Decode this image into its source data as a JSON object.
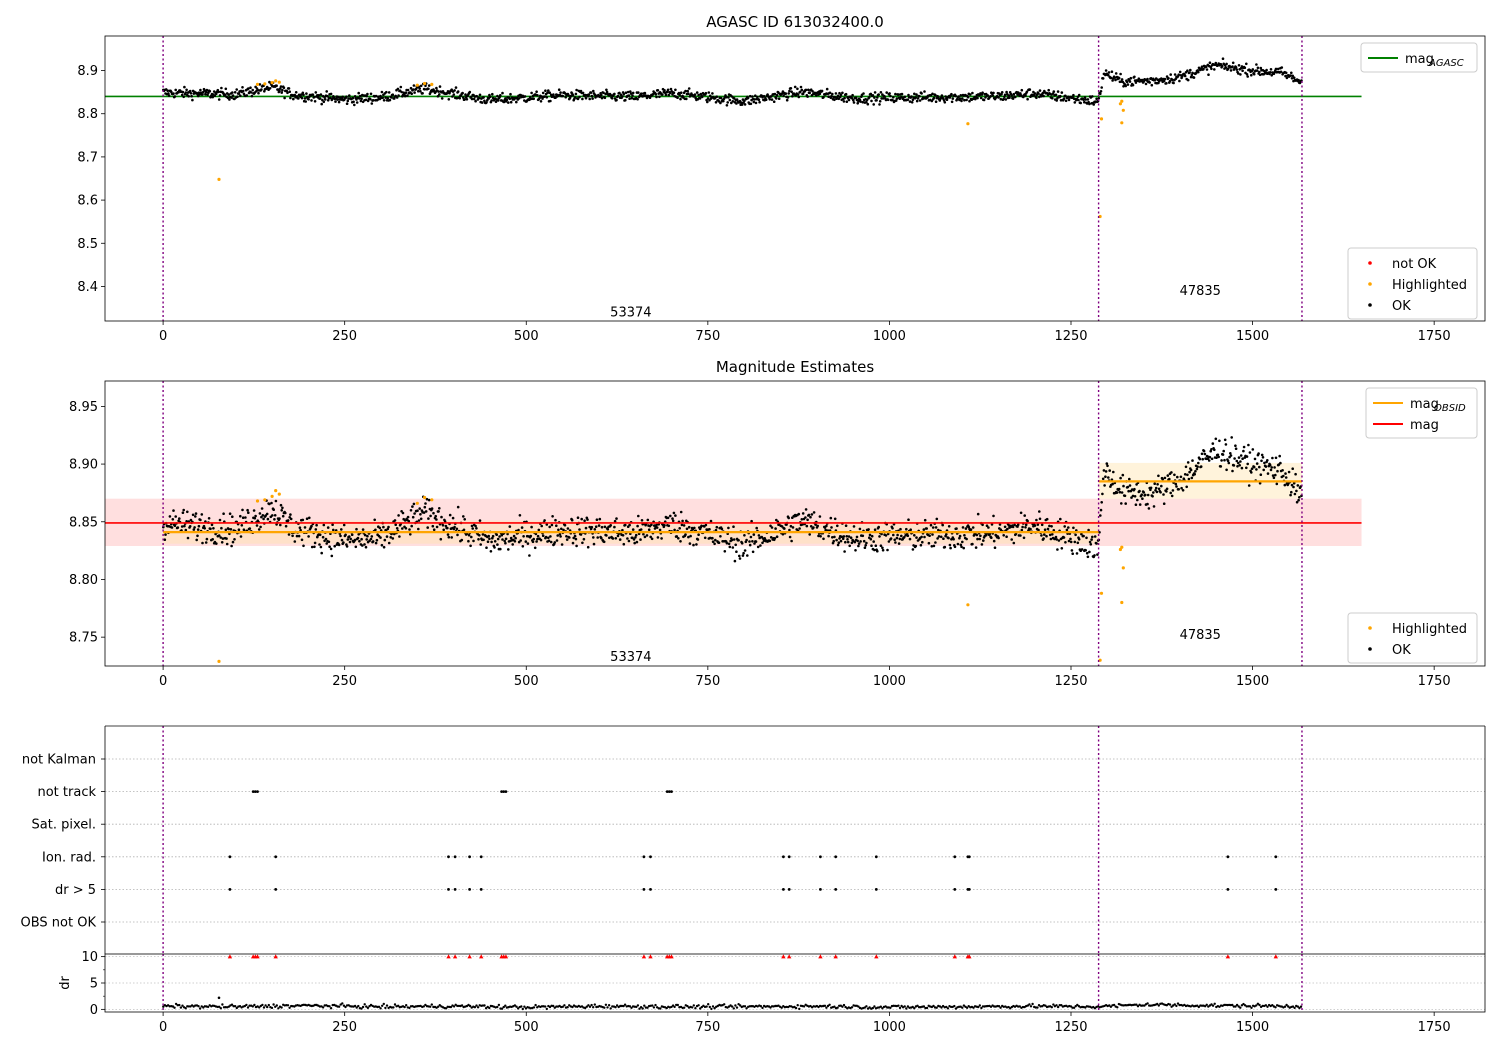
{
  "chart_data": [
    {
      "type": "scatter",
      "title": "AGASC ID 613032400.0",
      "xlim": [
        -80,
        1820
      ],
      "ylim": [
        8.32,
        8.98
      ],
      "xticks": [
        "0",
        "250",
        "500",
        "750",
        "1000",
        "1250",
        "1500",
        "1750"
      ],
      "yticks": [
        "8.4",
        "8.5",
        "8.6",
        "8.7",
        "8.8",
        "8.9"
      ],
      "ytick_values": [
        8.4,
        8.5,
        8.6,
        8.7,
        8.8,
        8.9
      ],
      "legend_upper": {
        "position": "upper-right",
        "entries": [
          {
            "label": "mag",
            "sub": "AGASC",
            "color": "#008000",
            "kind": "line"
          }
        ]
      },
      "legend_lower": {
        "position": "lower-right",
        "entries": [
          {
            "label": "not OK",
            "color": "#ff0000",
            "kind": "dot"
          },
          {
            "label": "Highlighted",
            "color": "#ffa500",
            "kind": "dot"
          },
          {
            "label": "OK",
            "color": "#000000",
            "kind": "dot"
          }
        ]
      },
      "obs_lines": [
        0,
        1288,
        1568
      ],
      "obs_annotations": [
        {
          "text": "53374",
          "x": 644,
          "y": 8.34
        },
        {
          "text": "47835",
          "x": 1428,
          "y": 8.39
        }
      ],
      "reference_line": {
        "name": "mag_AGASC",
        "y": 8.84,
        "x": [
          -80,
          1650
        ],
        "color": "#008000"
      },
      "series": [
        {
          "name": "OK",
          "color": "#000000",
          "segments": [
            {
              "x0": 0,
              "x1": 1288,
              "points": [
                [
                  0,
                  8.849
                ],
                [
                  100,
                  8.845
                ],
                [
                  150,
                  8.862
                ],
                [
                  180,
                  8.844
                ],
                [
                  250,
                  8.833
                ],
                [
                  300,
                  8.838
                ],
                [
                  360,
                  8.858
                ],
                [
                  400,
                  8.846
                ],
                [
                  450,
                  8.832
                ],
                [
                  550,
                  8.843
                ],
                [
                  650,
                  8.839
                ],
                [
                  700,
                  8.848
                ],
                [
                  800,
                  8.829
                ],
                [
                  880,
                  8.851
                ],
                [
                  950,
                  8.836
                ],
                [
                  1050,
                  8.838
                ],
                [
                  1150,
                  8.84
                ],
                [
                  1200,
                  8.847
                ],
                [
                  1288,
                  8.828
                ]
              ]
            },
            {
              "x0": 1288,
              "x1": 1568,
              "points": [
                [
                  1288,
                  8.826
                ],
                [
                  1295,
                  8.895
                ],
                [
                  1320,
                  8.875
                ],
                [
                  1360,
                  8.876
                ],
                [
                  1400,
                  8.885
                ],
                [
                  1450,
                  8.912
                ],
                [
                  1500,
                  8.9
                ],
                [
                  1540,
                  8.895
                ],
                [
                  1568,
                  8.873
                ]
              ]
            }
          ]
        },
        {
          "name": "Highlighted",
          "color": "#ffa500",
          "points": [
            [
              77,
              8.648
            ],
            [
              130,
              8.868
            ],
            [
              140,
              8.869
            ],
            [
              150,
              8.872
            ],
            [
              155,
              8.876
            ],
            [
              160,
              8.873
            ],
            [
              350,
              8.866
            ],
            [
              360,
              8.87
            ],
            [
              370,
              8.868
            ],
            [
              1108,
              8.777
            ],
            [
              1290,
              8.562
            ],
            [
              1292,
              8.788
            ],
            [
              1318,
              8.823
            ],
            [
              1320,
              8.829
            ],
            [
              1322,
              8.808
            ],
            [
              1320,
              8.779
            ]
          ]
        }
      ]
    },
    {
      "type": "scatter",
      "title": "Magnitude Estimates",
      "xlim": [
        -80,
        1820
      ],
      "ylim": [
        8.725,
        8.972
      ],
      "xticks": [
        "0",
        "250",
        "500",
        "750",
        "1000",
        "1250",
        "1500",
        "1750"
      ],
      "yticks": [
        "8.75",
        "8.80",
        "8.85",
        "8.90",
        "8.95"
      ],
      "ytick_values": [
        8.75,
        8.8,
        8.85,
        8.9,
        8.95
      ],
      "legend_upper": {
        "position": "upper-right",
        "entries": [
          {
            "label": "mag",
            "sub": "OBSID",
            "color": "#ffa500",
            "kind": "line"
          },
          {
            "label": "mag",
            "sub": "",
            "color": "#ff0000",
            "kind": "line"
          }
        ]
      },
      "legend_lower": {
        "position": "lower-right",
        "entries": [
          {
            "label": "Highlighted",
            "color": "#ffa500",
            "kind": "dot"
          },
          {
            "label": "OK",
            "color": "#000000",
            "kind": "dot"
          }
        ]
      },
      "obs_lines": [
        0,
        1288,
        1568
      ],
      "obs_annotations": [
        {
          "text": "53374",
          "x": 644,
          "y": 8.733
        },
        {
          "text": "47835",
          "x": 1428,
          "y": 8.752
        }
      ],
      "mag_line": {
        "y": 8.849,
        "band": [
          8.829,
          8.87
        ],
        "x": [
          -80,
          1650
        ],
        "color": "#ff0000",
        "band_color": "#ffdcdc"
      },
      "obsid_mags": [
        {
          "x0": 0,
          "x1": 1288,
          "y": 8.841,
          "band": [
            8.831,
            8.851
          ]
        },
        {
          "x0": 1288,
          "x1": 1568,
          "y": 8.885,
          "band": [
            8.87,
            8.901
          ]
        }
      ],
      "series": [
        {
          "name": "OK",
          "color": "#000000",
          "segments": [
            {
              "x0": 0,
              "x1": 1288,
              "points": [
                [
                  0,
                  8.849
                ],
                [
                  100,
                  8.843
                ],
                [
                  150,
                  8.862
                ],
                [
                  180,
                  8.844
                ],
                [
                  250,
                  8.834
                ],
                [
                  300,
                  8.836
                ],
                [
                  360,
                  8.858
                ],
                [
                  400,
                  8.846
                ],
                [
                  450,
                  8.833
                ],
                [
                  550,
                  8.843
                ],
                [
                  650,
                  8.84
                ],
                [
                  700,
                  8.848
                ],
                [
                  800,
                  8.83
                ],
                [
                  880,
                  8.851
                ],
                [
                  950,
                  8.836
                ],
                [
                  1050,
                  8.838
                ],
                [
                  1150,
                  8.84
                ],
                [
                  1200,
                  8.847
                ],
                [
                  1288,
                  8.828
                ]
              ]
            },
            {
              "x0": 1288,
              "x1": 1568,
              "points": [
                [
                  1288,
                  8.826
                ],
                [
                  1295,
                  8.895
                ],
                [
                  1320,
                  8.876
                ],
                [
                  1360,
                  8.874
                ],
                [
                  1400,
                  8.886
                ],
                [
                  1450,
                  8.912
                ],
                [
                  1500,
                  8.9
                ],
                [
                  1540,
                  8.895
                ],
                [
                  1568,
                  8.87
                ]
              ]
            }
          ]
        },
        {
          "name": "Highlighted",
          "color": "#ffa500",
          "points": [
            [
              77,
              8.729
            ],
            [
              130,
              8.868
            ],
            [
              140,
              8.869
            ],
            [
              150,
              8.872
            ],
            [
              155,
              8.877
            ],
            [
              160,
              8.874
            ],
            [
              350,
              8.866
            ],
            [
              360,
              8.871
            ],
            [
              370,
              8.869
            ],
            [
              1108,
              8.778
            ],
            [
              1290,
              8.73
            ],
            [
              1292,
              8.788
            ],
            [
              1318,
              8.826
            ],
            [
              1320,
              8.828
            ],
            [
              1322,
              8.81
            ],
            [
              1320,
              8.78
            ]
          ]
        }
      ]
    },
    {
      "type": "scatter",
      "title": "",
      "xlim": [
        -80,
        1820
      ],
      "xticks": [
        "0",
        "250",
        "500",
        "750",
        "1000",
        "1250",
        "1500",
        "1750"
      ],
      "flag_categories": [
        "not Kalman",
        "not track",
        "Sat. pixel.",
        "Ion. rad.",
        "dr > 5",
        "OBS not OK"
      ],
      "flags": {
        "not track": [
          124,
          127,
          130,
          466,
          469,
          472,
          694,
          697,
          700
        ],
        "Ion. rad.": [
          92,
          155,
          393,
          402,
          422,
          438,
          662,
          671,
          854,
          862,
          905,
          926,
          982,
          1090,
          1108,
          1110,
          1466,
          1532
        ],
        "dr > 5": [
          92,
          155,
          393,
          402,
          422,
          438,
          662,
          671,
          854,
          862,
          905,
          926,
          982,
          1090,
          1108,
          1110,
          1466,
          1532
        ]
      },
      "obs_lines": [
        0,
        1288,
        1568
      ],
      "dr": {
        "ylabel": "dr",
        "ylim": [
          -0.5,
          10.5
        ],
        "yticks": [
          "0",
          "5",
          "10"
        ],
        "ytick_values": [
          0,
          5,
          10
        ],
        "baseline": [
          [
            0,
            0.6
          ],
          [
            100,
            0.5
          ],
          [
            200,
            0.7
          ],
          [
            300,
            0.5
          ],
          [
            400,
            0.6
          ],
          [
            500,
            0.4
          ],
          [
            600,
            0.6
          ],
          [
            700,
            0.5
          ],
          [
            800,
            0.5
          ],
          [
            900,
            0.6
          ],
          [
            1000,
            0.4
          ],
          [
            1100,
            0.5
          ],
          [
            1200,
            0.6
          ],
          [
            1288,
            0.5
          ],
          [
            1350,
            0.9
          ],
          [
            1450,
            0.7
          ],
          [
            1568,
            0.6
          ]
        ],
        "outliers": [
          [
            77,
            2.2
          ]
        ],
        "capped": [
          92,
          124,
          127,
          130,
          155,
          393,
          402,
          422,
          438,
          466,
          469,
          472,
          662,
          671,
          694,
          697,
          700,
          854,
          862,
          905,
          926,
          982,
          1090,
          1108,
          1110,
          1466,
          1532
        ],
        "capped_color": "#ff0000"
      }
    }
  ]
}
